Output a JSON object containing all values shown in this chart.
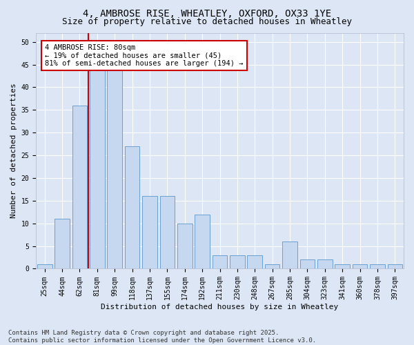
{
  "title": "4, AMBROSE RISE, WHEATLEY, OXFORD, OX33 1YE",
  "subtitle": "Size of property relative to detached houses in Wheatley",
  "xlabel": "Distribution of detached houses by size in Wheatley",
  "ylabel": "Number of detached properties",
  "categories": [
    "25sqm",
    "44sqm",
    "62sqm",
    "81sqm",
    "99sqm",
    "118sqm",
    "137sqm",
    "155sqm",
    "174sqm",
    "192sqm",
    "211sqm",
    "230sqm",
    "248sqm",
    "267sqm",
    "285sqm",
    "304sqm",
    "323sqm",
    "341sqm",
    "360sqm",
    "378sqm",
    "397sqm"
  ],
  "values": [
    1,
    11,
    36,
    45,
    44,
    27,
    16,
    16,
    10,
    12,
    3,
    3,
    3,
    1,
    6,
    2,
    2,
    1,
    1,
    1,
    1
  ],
  "bar_color": "#c5d8f0",
  "bar_edge_color": "#6aa0d0",
  "red_line_x": 2.5,
  "annotation_text": "4 AMBROSE RISE: 80sqm\n← 19% of detached houses are smaller (45)\n81% of semi-detached houses are larger (194) →",
  "annotation_box_color": "#ffffff",
  "annotation_box_edge_color": "#cc0000",
  "ylim": [
    0,
    52
  ],
  "yticks": [
    0,
    5,
    10,
    15,
    20,
    25,
    30,
    35,
    40,
    45,
    50
  ],
  "background_color": "#dce6f5",
  "plot_bg_color": "#dce6f5",
  "grid_color": "#ffffff",
  "footer": "Contains HM Land Registry data © Crown copyright and database right 2025.\nContains public sector information licensed under the Open Government Licence v3.0.",
  "title_fontsize": 10,
  "subtitle_fontsize": 9,
  "axis_label_fontsize": 8,
  "tick_fontsize": 7,
  "annotation_fontsize": 7.5,
  "footer_fontsize": 6.5
}
